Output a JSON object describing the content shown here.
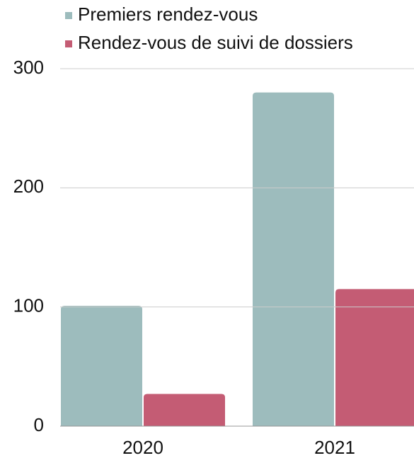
{
  "chart_data": {
    "type": "bar",
    "categories": [
      "2020",
      "2021"
    ],
    "series": [
      {
        "name": "Premiers rendez-vous",
        "color": "#9dbcbd",
        "values": [
          101,
          280
        ]
      },
      {
        "name": "Rendez-vous de suivi de dossiers",
        "color": "#c45c74",
        "values": [
          27,
          115
        ]
      }
    ],
    "ylim": [
      0,
      300
    ],
    "yticks": [
      0,
      100,
      200,
      300
    ],
    "grid": true,
    "legend": "top"
  }
}
